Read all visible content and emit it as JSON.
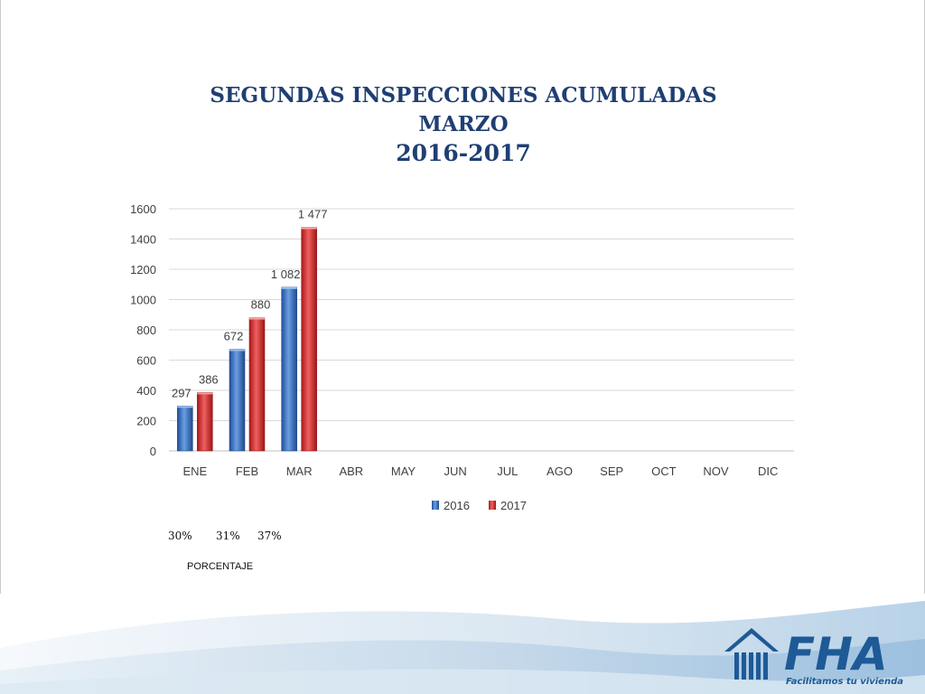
{
  "slide": {
    "title_line1": "SEGUNDAS INSPECCIONES ACUMULADAS",
    "title_line2": "MARZO",
    "title_line3": "2016-2017",
    "percentages": [
      "30%",
      "31%",
      "37%"
    ],
    "percentage_label": "PORCENTAJE"
  },
  "logo": {
    "text": "FHA",
    "slogan": "Facilitamos tu vivienda"
  },
  "chart_data": {
    "type": "bar",
    "categories": [
      "ENE",
      "FEB",
      "MAR",
      "ABR",
      "MAY",
      "JUN",
      "JUL",
      "AGO",
      "SEP",
      "OCT",
      "NOV",
      "DIC"
    ],
    "series": [
      {
        "name": "2016",
        "color": "#3a6fc0",
        "values": [
          297,
          672,
          1082,
          null,
          null,
          null,
          null,
          null,
          null,
          null,
          null,
          null
        ],
        "labels": [
          "297",
          "672",
          "1 082"
        ]
      },
      {
        "name": "2017",
        "color": "#d42a2a",
        "values": [
          386,
          880,
          1477,
          null,
          null,
          null,
          null,
          null,
          null,
          null,
          null,
          null
        ],
        "labels": [
          "386",
          "880",
          "1 477"
        ]
      }
    ],
    "y_ticks": [
      "0",
      "200",
      "400",
      "600",
      "800",
      "1000",
      "1200",
      "1400",
      "1600"
    ],
    "ylim": [
      0,
      1600
    ],
    "grid": true,
    "legend_position": "bottom"
  }
}
